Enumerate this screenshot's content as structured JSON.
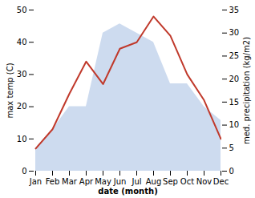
{
  "chart_data": {
    "type": "line",
    "xlabel": "date (month)",
    "ylabel": "max temp (C)",
    "y2label": "med. precipitation (kg/m2)",
    "categories": [
      "Jan",
      "Feb",
      "Mar",
      "Apr",
      "May",
      "Jun",
      "Jul",
      "Aug",
      "Sep",
      "Oct",
      "Nov",
      "Dec"
    ],
    "series": [
      {
        "type": "area",
        "axis": "y2",
        "color": "#b8cce8",
        "values": [
          5,
          9,
          14,
          14,
          30,
          32,
          30,
          28,
          19,
          19,
          14,
          11
        ]
      },
      {
        "type": "line",
        "color": "#c0392b",
        "values": [
          7,
          13,
          24,
          34,
          27,
          38,
          40,
          48,
          42,
          30,
          22,
          10
        ]
      }
    ],
    "ylim": [
      0,
      50
    ],
    "yticks": [
      0,
      10,
      20,
      30,
      40,
      50
    ],
    "y2lim": [
      0,
      35
    ],
    "y2ticks": [
      0,
      5,
      10,
      15,
      20,
      25,
      30,
      35
    ]
  }
}
